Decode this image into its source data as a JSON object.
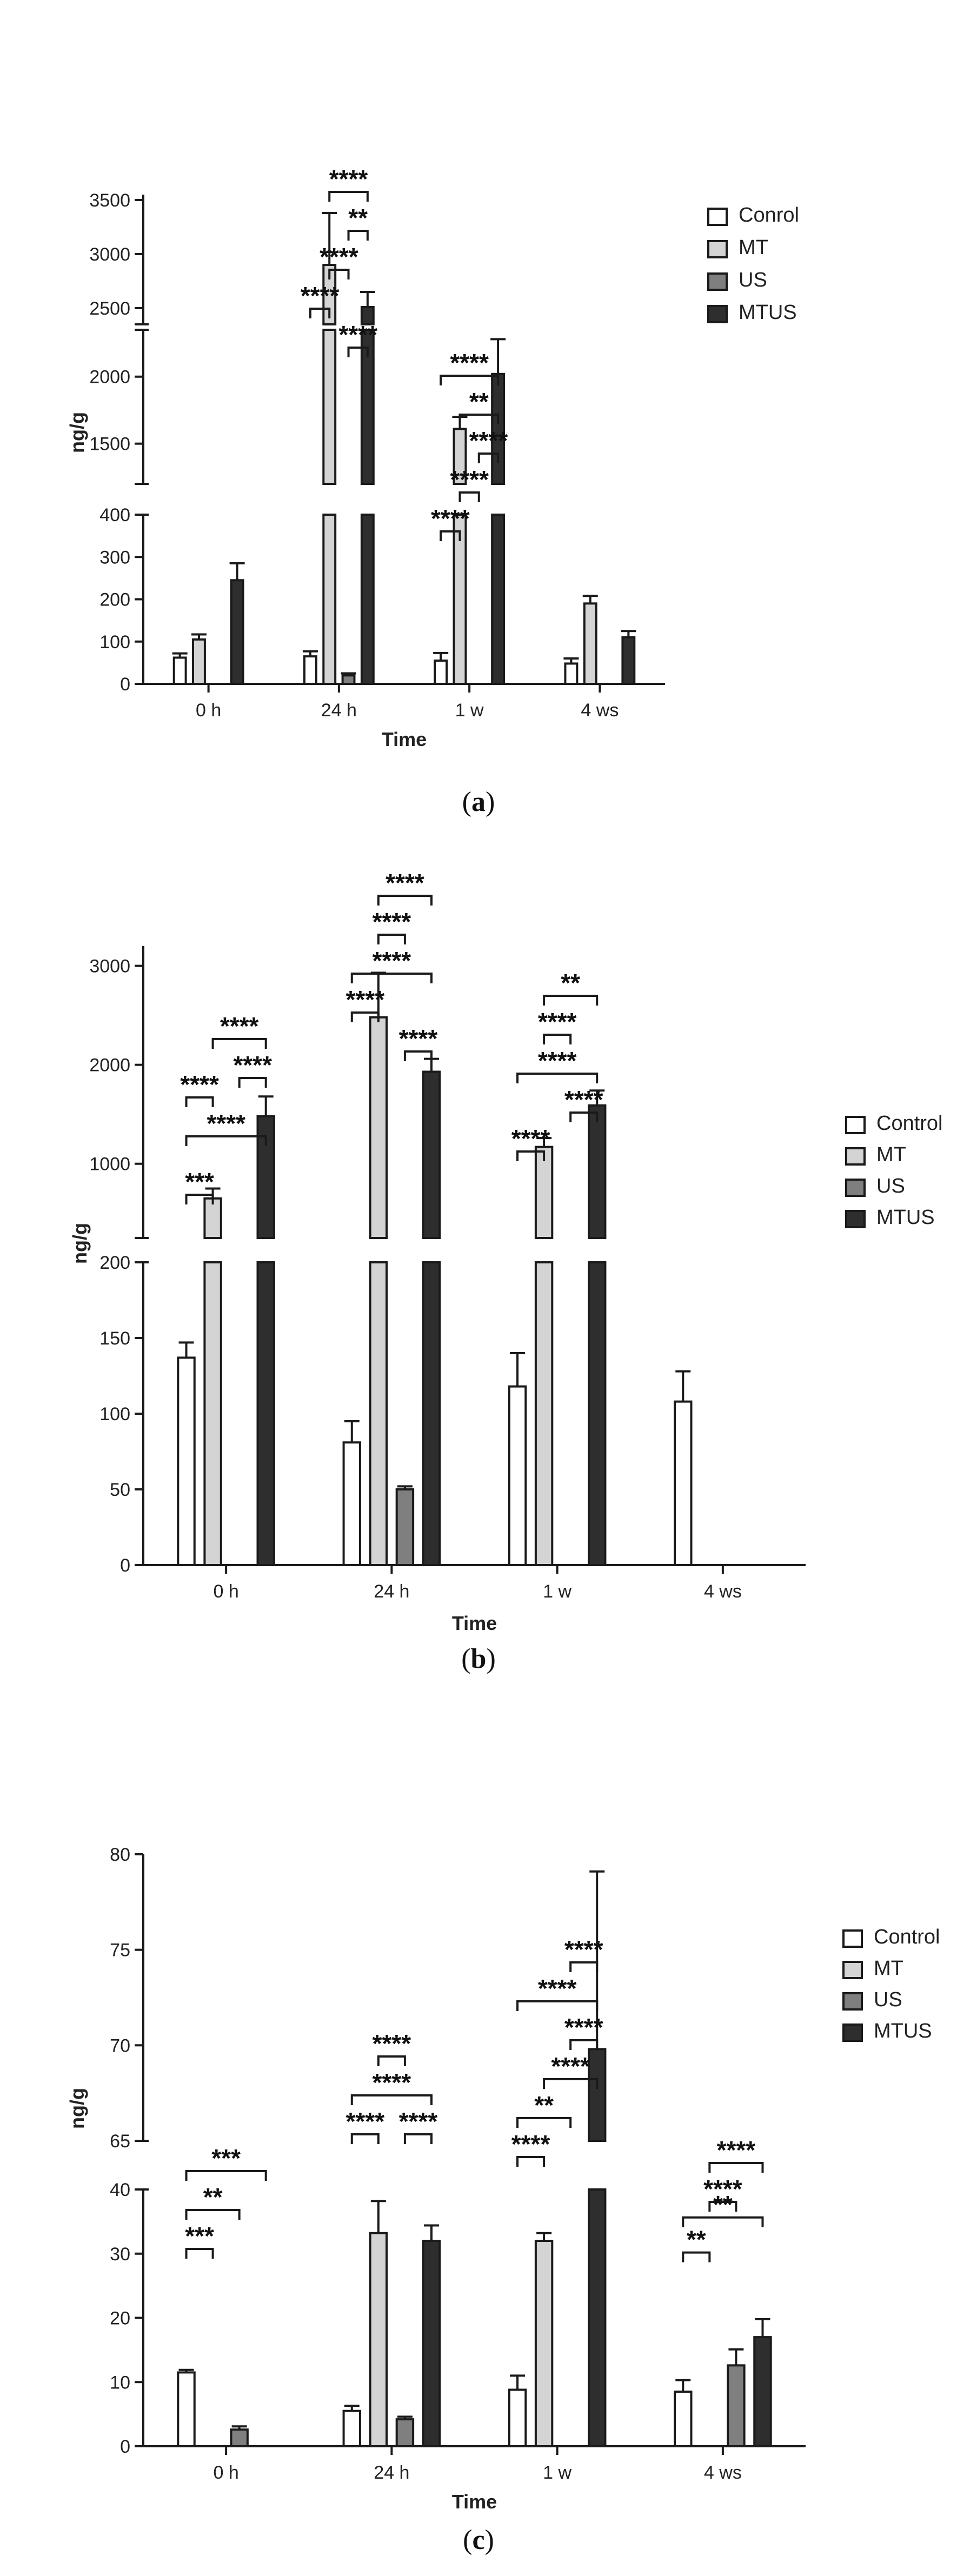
{
  "chart_data": [
    {
      "type": "bar",
      "panel_label": "a",
      "categories": [
        "0 h",
        "24 h",
        "1 w",
        "4 ws"
      ],
      "xlabel": "Time",
      "ylabel": "ng/g",
      "legend_placement": "top-right",
      "series": [
        {
          "name": "Conrol",
          "values": [
            62,
            65,
            55,
            48
          ],
          "errors": [
            10,
            12,
            18,
            12
          ]
        },
        {
          "name": "MT",
          "values": [
            105,
            2900,
            1610,
            190
          ],
          "errors": [
            12,
            480,
            90,
            18
          ]
        },
        {
          "name": "US",
          "values": [
            0,
            20,
            0,
            0
          ],
          "errors": [
            0,
            5,
            0,
            0
          ]
        },
        {
          "name": "MTUS",
          "values": [
            245,
            2510,
            2020,
            110
          ],
          "errors": [
            40,
            140,
            260,
            15
          ]
        }
      ],
      "axis_segments": [
        {
          "range": [
            0,
            400
          ],
          "ticks": [
            0,
            100,
            200,
            300,
            400
          ]
        },
        {
          "range": [
            1200,
            2350
          ],
          "ticks": [
            1500,
            2000
          ]
        },
        {
          "range": [
            2350,
            3550
          ],
          "ticks": [
            2500,
            3000,
            3500
          ]
        }
      ],
      "significance": [
        {
          "group": 1,
          "from": 1,
          "to": 3,
          "level": 4,
          "label": "****"
        },
        {
          "group": 1,
          "from": 2,
          "to": 3,
          "level": 3,
          "label": "**"
        },
        {
          "group": 1,
          "from": 1,
          "to": 2,
          "level": 2,
          "label": "****"
        },
        {
          "group": 1,
          "from": 0,
          "to": 1,
          "level": 1,
          "label": "****"
        },
        {
          "group": 1,
          "from": 2,
          "to": 3,
          "level": 0,
          "label": "****"
        },
        {
          "group": 2,
          "from": 0,
          "to": 3,
          "level": 4,
          "label": "****"
        },
        {
          "group": 2,
          "from": 1,
          "to": 3,
          "level": 3,
          "label": "**"
        },
        {
          "group": 2,
          "from": 2,
          "to": 3,
          "level": 2,
          "label": "****"
        },
        {
          "group": 2,
          "from": 1,
          "to": 2,
          "level": 1,
          "label": "****"
        },
        {
          "group": 2,
          "from": 0,
          "to": 1,
          "level": 0,
          "label": "****"
        }
      ]
    },
    {
      "type": "bar",
      "panel_label": "b",
      "categories": [
        "0 h",
        "24 h",
        "1 w",
        "4 ws"
      ],
      "xlabel": "Time",
      "ylabel": "ng/g",
      "legend_placement": "right",
      "series": [
        {
          "name": "Control",
          "values": [
            137,
            81,
            118,
            108
          ],
          "errors": [
            10,
            14,
            22,
            20
          ]
        },
        {
          "name": "MT",
          "values": [
            650,
            2480,
            1170,
            0
          ],
          "errors": [
            100,
            450,
            90,
            0
          ]
        },
        {
          "name": "US",
          "values": [
            0,
            50,
            0,
            0
          ],
          "errors": [
            0,
            2,
            0,
            0
          ]
        },
        {
          "name": "MTUS",
          "values": [
            1480,
            1930,
            1590,
            0
          ],
          "errors": [
            200,
            130,
            150,
            0
          ]
        }
      ],
      "axis_segments": [
        {
          "range": [
            0,
            200
          ],
          "ticks": [
            0,
            50,
            100,
            150,
            200
          ]
        },
        {
          "range": [
            250,
            3200
          ],
          "ticks": [
            1000,
            2000,
            3000
          ]
        }
      ],
      "significance": [
        {
          "group": 0,
          "from": 1,
          "to": 3,
          "level": 4,
          "label": "****"
        },
        {
          "group": 0,
          "from": 2,
          "to": 3,
          "level": 3,
          "label": "****"
        },
        {
          "group": 0,
          "from": 0,
          "to": 1,
          "level": 2.5,
          "label": "****"
        },
        {
          "group": 0,
          "from": 0,
          "to": 3,
          "level": 1.5,
          "label": "****"
        },
        {
          "group": 0,
          "from": 0,
          "to": 1,
          "level": 0,
          "label": "***"
        },
        {
          "group": 1,
          "from": 1,
          "to": 3,
          "level": 4,
          "label": "****"
        },
        {
          "group": 1,
          "from": 1,
          "to": 2,
          "level": 3,
          "label": "****"
        },
        {
          "group": 1,
          "from": 0,
          "to": 3,
          "level": 2,
          "label": "****"
        },
        {
          "group": 1,
          "from": 0,
          "to": 1,
          "level": 1,
          "label": "****"
        },
        {
          "group": 1,
          "from": 2,
          "to": 3,
          "level": 0,
          "label": "****"
        },
        {
          "group": 2,
          "from": 1,
          "to": 3,
          "level": 4,
          "label": "**"
        },
        {
          "group": 2,
          "from": 1,
          "to": 2,
          "level": 3,
          "label": "****"
        },
        {
          "group": 2,
          "from": 0,
          "to": 3,
          "level": 2,
          "label": "****"
        },
        {
          "group": 2,
          "from": 2,
          "to": 3,
          "level": 1,
          "label": "****"
        },
        {
          "group": 2,
          "from": 0,
          "to": 1,
          "level": 0,
          "label": "****"
        }
      ]
    },
    {
      "type": "bar",
      "panel_label": "c",
      "categories": [
        "0 h",
        "24 h",
        "1 w",
        "4 ws"
      ],
      "xlabel": "Time",
      "ylabel": "ng/g",
      "legend_placement": "right",
      "series": [
        {
          "name": "Control",
          "values": [
            11.5,
            5.5,
            8.8,
            8.5
          ],
          "errors": [
            0.4,
            0.8,
            2.2,
            1.8
          ]
        },
        {
          "name": "MT",
          "values": [
            0,
            33.2,
            32.0,
            0
          ],
          "errors": [
            0,
            5,
            1.2,
            0
          ]
        },
        {
          "name": "US",
          "values": [
            2.6,
            4.2,
            0,
            12.6
          ],
          "errors": [
            0.5,
            0.4,
            0,
            2.5
          ]
        },
        {
          "name": "MTUS",
          "values": [
            0,
            32.0,
            69.8,
            17.0
          ],
          "errors": [
            0,
            2.4,
            9.3,
            2.8
          ]
        }
      ],
      "axis_segments": [
        {
          "range": [
            0,
            40
          ],
          "ticks": [
            0,
            10,
            20,
            30,
            40
          ]
        },
        {
          "range": [
            65,
            80
          ],
          "ticks": [
            65,
            70,
            75,
            80
          ]
        }
      ],
      "significance": [
        {
          "group": 0,
          "from": 0,
          "to": 3,
          "level": 2,
          "label": "***"
        },
        {
          "group": 0,
          "from": 0,
          "to": 2,
          "level": 1,
          "label": "**"
        },
        {
          "group": 0,
          "from": 0,
          "to": 1,
          "level": 0,
          "label": "***"
        },
        {
          "group": 1,
          "from": 1,
          "to": 2,
          "level": 3,
          "label": "****"
        },
        {
          "group": 1,
          "from": 0,
          "to": 3,
          "level": 2,
          "label": "****"
        },
        {
          "group": 1,
          "from": 0,
          "to": 1,
          "level": 1,
          "label": "****"
        },
        {
          "group": 1,
          "from": 2,
          "to": 3,
          "level": 1,
          "label": "****"
        },
        {
          "group": 2,
          "from": 2,
          "to": 3,
          "level": 5,
          "label": "****"
        },
        {
          "group": 2,
          "from": 0,
          "to": 3,
          "level": 4,
          "label": "****"
        },
        {
          "group": 2,
          "from": 2,
          "to": 3,
          "level": 3,
          "label": "****"
        },
        {
          "group": 2,
          "from": 1,
          "to": 3,
          "level": 2,
          "label": "****"
        },
        {
          "group": 2,
          "from": 0,
          "to": 2,
          "level": 1,
          "label": "**"
        },
        {
          "group": 2,
          "from": 0,
          "to": 1,
          "level": 0,
          "label": "****"
        },
        {
          "group": 3,
          "from": 1,
          "to": 3,
          "level": 2,
          "label": "****"
        },
        {
          "group": 3,
          "from": 1,
          "to": 2,
          "level": 1,
          "label": "****"
        },
        {
          "group": 3,
          "from": 0,
          "to": 3,
          "level": 0.6,
          "label": "**"
        },
        {
          "group": 3,
          "from": 0,
          "to": 1,
          "level": -0.3,
          "label": "**"
        }
      ]
    }
  ],
  "colors": {
    "series": [
      "#ffffff",
      "#d4d4d4",
      "#7f7f7f",
      "#2e2e2e"
    ],
    "stroke": "#1a1a1a",
    "text": "#222222"
  }
}
